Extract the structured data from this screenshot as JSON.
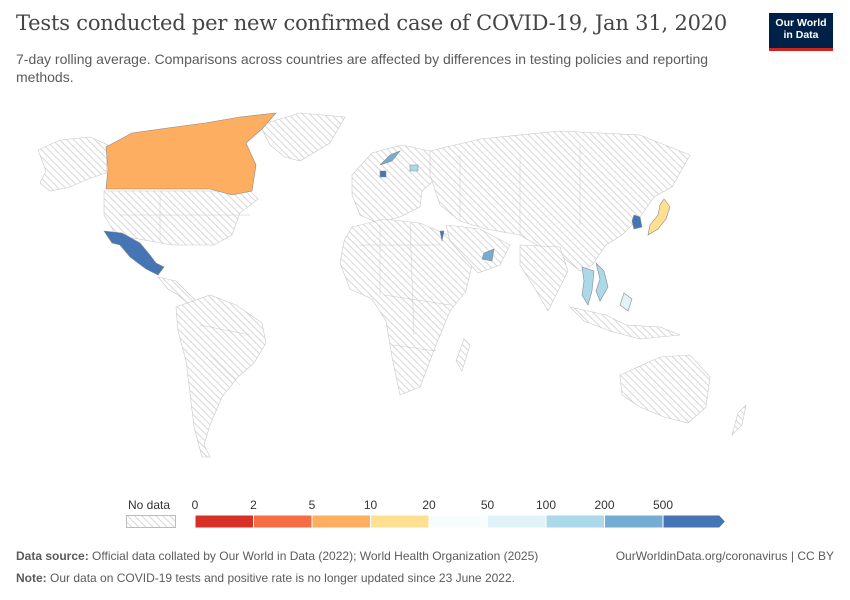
{
  "header": {
    "title": "Tests conducted per new confirmed case of COVID-19, Jan 31, 2020",
    "subtitle": "7-day rolling average. Comparisons across countries are affected by differences in testing policies and reporting methods."
  },
  "logo": {
    "line1": "Our World",
    "line2": "in Data",
    "bg_color": "#002147",
    "accent_color": "#ce261e"
  },
  "map": {
    "date": "Jan 31, 2020",
    "no_data_color": "#efefef",
    "countries": [
      {
        "name": "Canada",
        "bin": "5–10",
        "color": "#fdae61"
      },
      {
        "name": "Mexico",
        "bin": "500+",
        "color": "#4575b4"
      },
      {
        "name": "Japan",
        "bin": "10–20",
        "color": "#fee090"
      },
      {
        "name": "South Korea",
        "bin": "500+",
        "color": "#4575b4"
      },
      {
        "name": "Vietnam",
        "bin": "100–200",
        "color": "#abd9e9"
      },
      {
        "name": "Thailand",
        "bin": "100–200",
        "color": "#abd9e9"
      },
      {
        "name": "Philippines",
        "bin": "50–100",
        "color": "#e0f3f8"
      },
      {
        "name": "United Arab Emirates",
        "bin": "200–500",
        "color": "#74add1"
      },
      {
        "name": "Israel",
        "bin": "500+",
        "color": "#4575b4"
      },
      {
        "name": "Belgium",
        "bin": "500+",
        "color": "#4575b4"
      },
      {
        "name": "Estonia",
        "bin": "100–200",
        "color": "#abd9e9"
      },
      {
        "name": "Norway",
        "bin": "200–500",
        "color": "#74add1"
      }
    ]
  },
  "legend": {
    "no_data_label": "No data",
    "ticks": [
      "0",
      "2",
      "5",
      "10",
      "20",
      "50",
      "100",
      "200",
      "500"
    ],
    "bins": [
      {
        "from": "0",
        "to": "2",
        "color": "#d73027"
      },
      {
        "from": "2",
        "to": "5",
        "color": "#f46d43"
      },
      {
        "from": "5",
        "to": "10",
        "color": "#fdae61"
      },
      {
        "from": "10",
        "to": "20",
        "color": "#fee090"
      },
      {
        "from": "20",
        "to": "50",
        "color": "#f7fcfd"
      },
      {
        "from": "50",
        "to": "100",
        "color": "#e0f3f8"
      },
      {
        "from": "100",
        "to": "200",
        "color": "#abd9e9"
      },
      {
        "from": "200",
        "to": "500",
        "color": "#74add1"
      },
      {
        "from": "500",
        "to": "",
        "color": "#4575b4"
      }
    ]
  },
  "footer": {
    "source_label": "Data source:",
    "source_text": "Official data collated by Our World in Data (2022); World Health Organization (2025)",
    "url": "OurWorldinData.org/coronavirus | CC BY",
    "note_label": "Note:",
    "note_text": "Our data on COVID-19 tests and positive rate is no longer updated since 23 June 2022."
  }
}
